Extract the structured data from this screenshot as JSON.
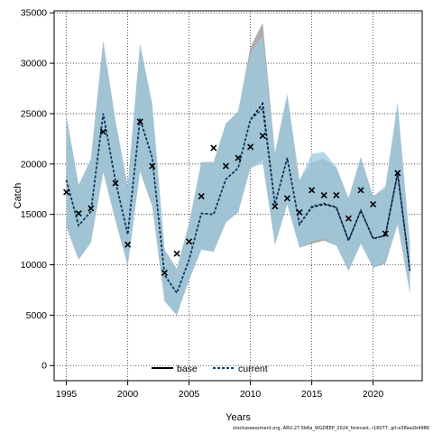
{
  "chart_data": {
    "type": "line",
    "title": "",
    "xlabel": "Years",
    "ylabel": "Catch",
    "xlim": [
      1994,
      2024
    ],
    "ylim": [
      -1500,
      35200
    ],
    "grid": true,
    "x_ticks": [
      1995,
      2000,
      2005,
      2010,
      2015,
      2020
    ],
    "y_ticks": [
      0,
      5000,
      10000,
      15000,
      20000,
      25000,
      30000,
      35000
    ],
    "legend": {
      "placement": "bottom-center",
      "entries": [
        "base",
        "current"
      ]
    },
    "colors": {
      "base_band": "#8c8c8c",
      "current_band": "#9ccbe2",
      "current_line": "#0a3d6b",
      "base_line": "#000000",
      "observed": "#000000",
      "grid": "#333333"
    },
    "x": [
      1995,
      1996,
      1997,
      1998,
      1999,
      2000,
      2001,
      2002,
      2003,
      2004,
      2005,
      2006,
      2007,
      2008,
      2009,
      2010,
      2011,
      2012,
      2013,
      2014,
      2015,
      2016,
      2017,
      2018,
      2019,
      2020,
      2021,
      2022,
      2023
    ],
    "series": [
      {
        "name": "base",
        "values": [
          18400,
          13900,
          15300,
          25000,
          18300,
          13000,
          24500,
          20600,
          9000,
          7200,
          10500,
          15100,
          15000,
          18500,
          19600,
          24400,
          26000,
          16000,
          20600,
          14000,
          15700,
          16000,
          15700,
          12400,
          15400,
          12600,
          12900,
          19100,
          9400
        ],
        "lower": [
          13700,
          10500,
          12200,
          19200,
          14400,
          9900,
          19300,
          15800,
          6400,
          5000,
          8500,
          11500,
          11300,
          14200,
          15200,
          19600,
          20400,
          12000,
          16000,
          11700,
          12100,
          12400,
          11900,
          9400,
          12100,
          9700,
          10100,
          14000,
          7200
        ],
        "upper": [
          24800,
          17900,
          20500,
          32200,
          24300,
          17800,
          31900,
          25900,
          11500,
          9600,
          14100,
          20200,
          20200,
          24000,
          25200,
          31600,
          34000,
          21100,
          26900,
          18400,
          20200,
          20500,
          19700,
          16600,
          20700,
          16800,
          17600,
          25700,
          12100
        ]
      },
      {
        "name": "current",
        "values": [
          18400,
          13900,
          15300,
          25000,
          18300,
          13000,
          24500,
          20600,
          9000,
          7200,
          10500,
          15100,
          15000,
          18500,
          19600,
          24400,
          25500,
          16000,
          20600,
          14000,
          15800,
          16100,
          15700,
          12400,
          15400,
          12600,
          12900,
          19100,
          9400
        ],
        "lower": [
          13700,
          10500,
          12200,
          19200,
          14400,
          9900,
          19300,
          15800,
          6400,
          5000,
          8500,
          11500,
          11300,
          14200,
          15200,
          19600,
          20000,
          12000,
          16000,
          11700,
          12300,
          12600,
          11900,
          9400,
          12100,
          9700,
          10300,
          14100,
          7200
        ],
        "upper": [
          24800,
          17900,
          20500,
          32200,
          24300,
          17800,
          31900,
          25900,
          11500,
          9600,
          14100,
          20200,
          20200,
          24000,
          25200,
          31000,
          32700,
          21100,
          26900,
          18400,
          21000,
          21200,
          19700,
          16600,
          20700,
          16800,
          17800,
          26200,
          12100
        ]
      }
    ],
    "observed": {
      "x": [
        1995,
        1996,
        1997,
        1998,
        1999,
        2000,
        2001,
        2002,
        2003,
        2004,
        2005,
        2006,
        2007,
        2008,
        2009,
        2010,
        2011,
        2012,
        2013,
        2014,
        2015,
        2016,
        2017,
        2018,
        2019,
        2020,
        2021,
        2022
      ],
      "y": [
        17200,
        15100,
        15600,
        23200,
        18100,
        12000,
        24200,
        19800,
        9200,
        11100,
        12300,
        16800,
        21600,
        19800,
        20600,
        21700,
        22800,
        15800,
        16600,
        15200,
        17400,
        16900,
        16900,
        14600,
        17400,
        16000,
        13100,
        19100
      ]
    }
  },
  "footnote": "stockassessment.org, ARU.27.5b6a_WGDEEP_2024_forecast, r16077, git:e38aa2b4986"
}
